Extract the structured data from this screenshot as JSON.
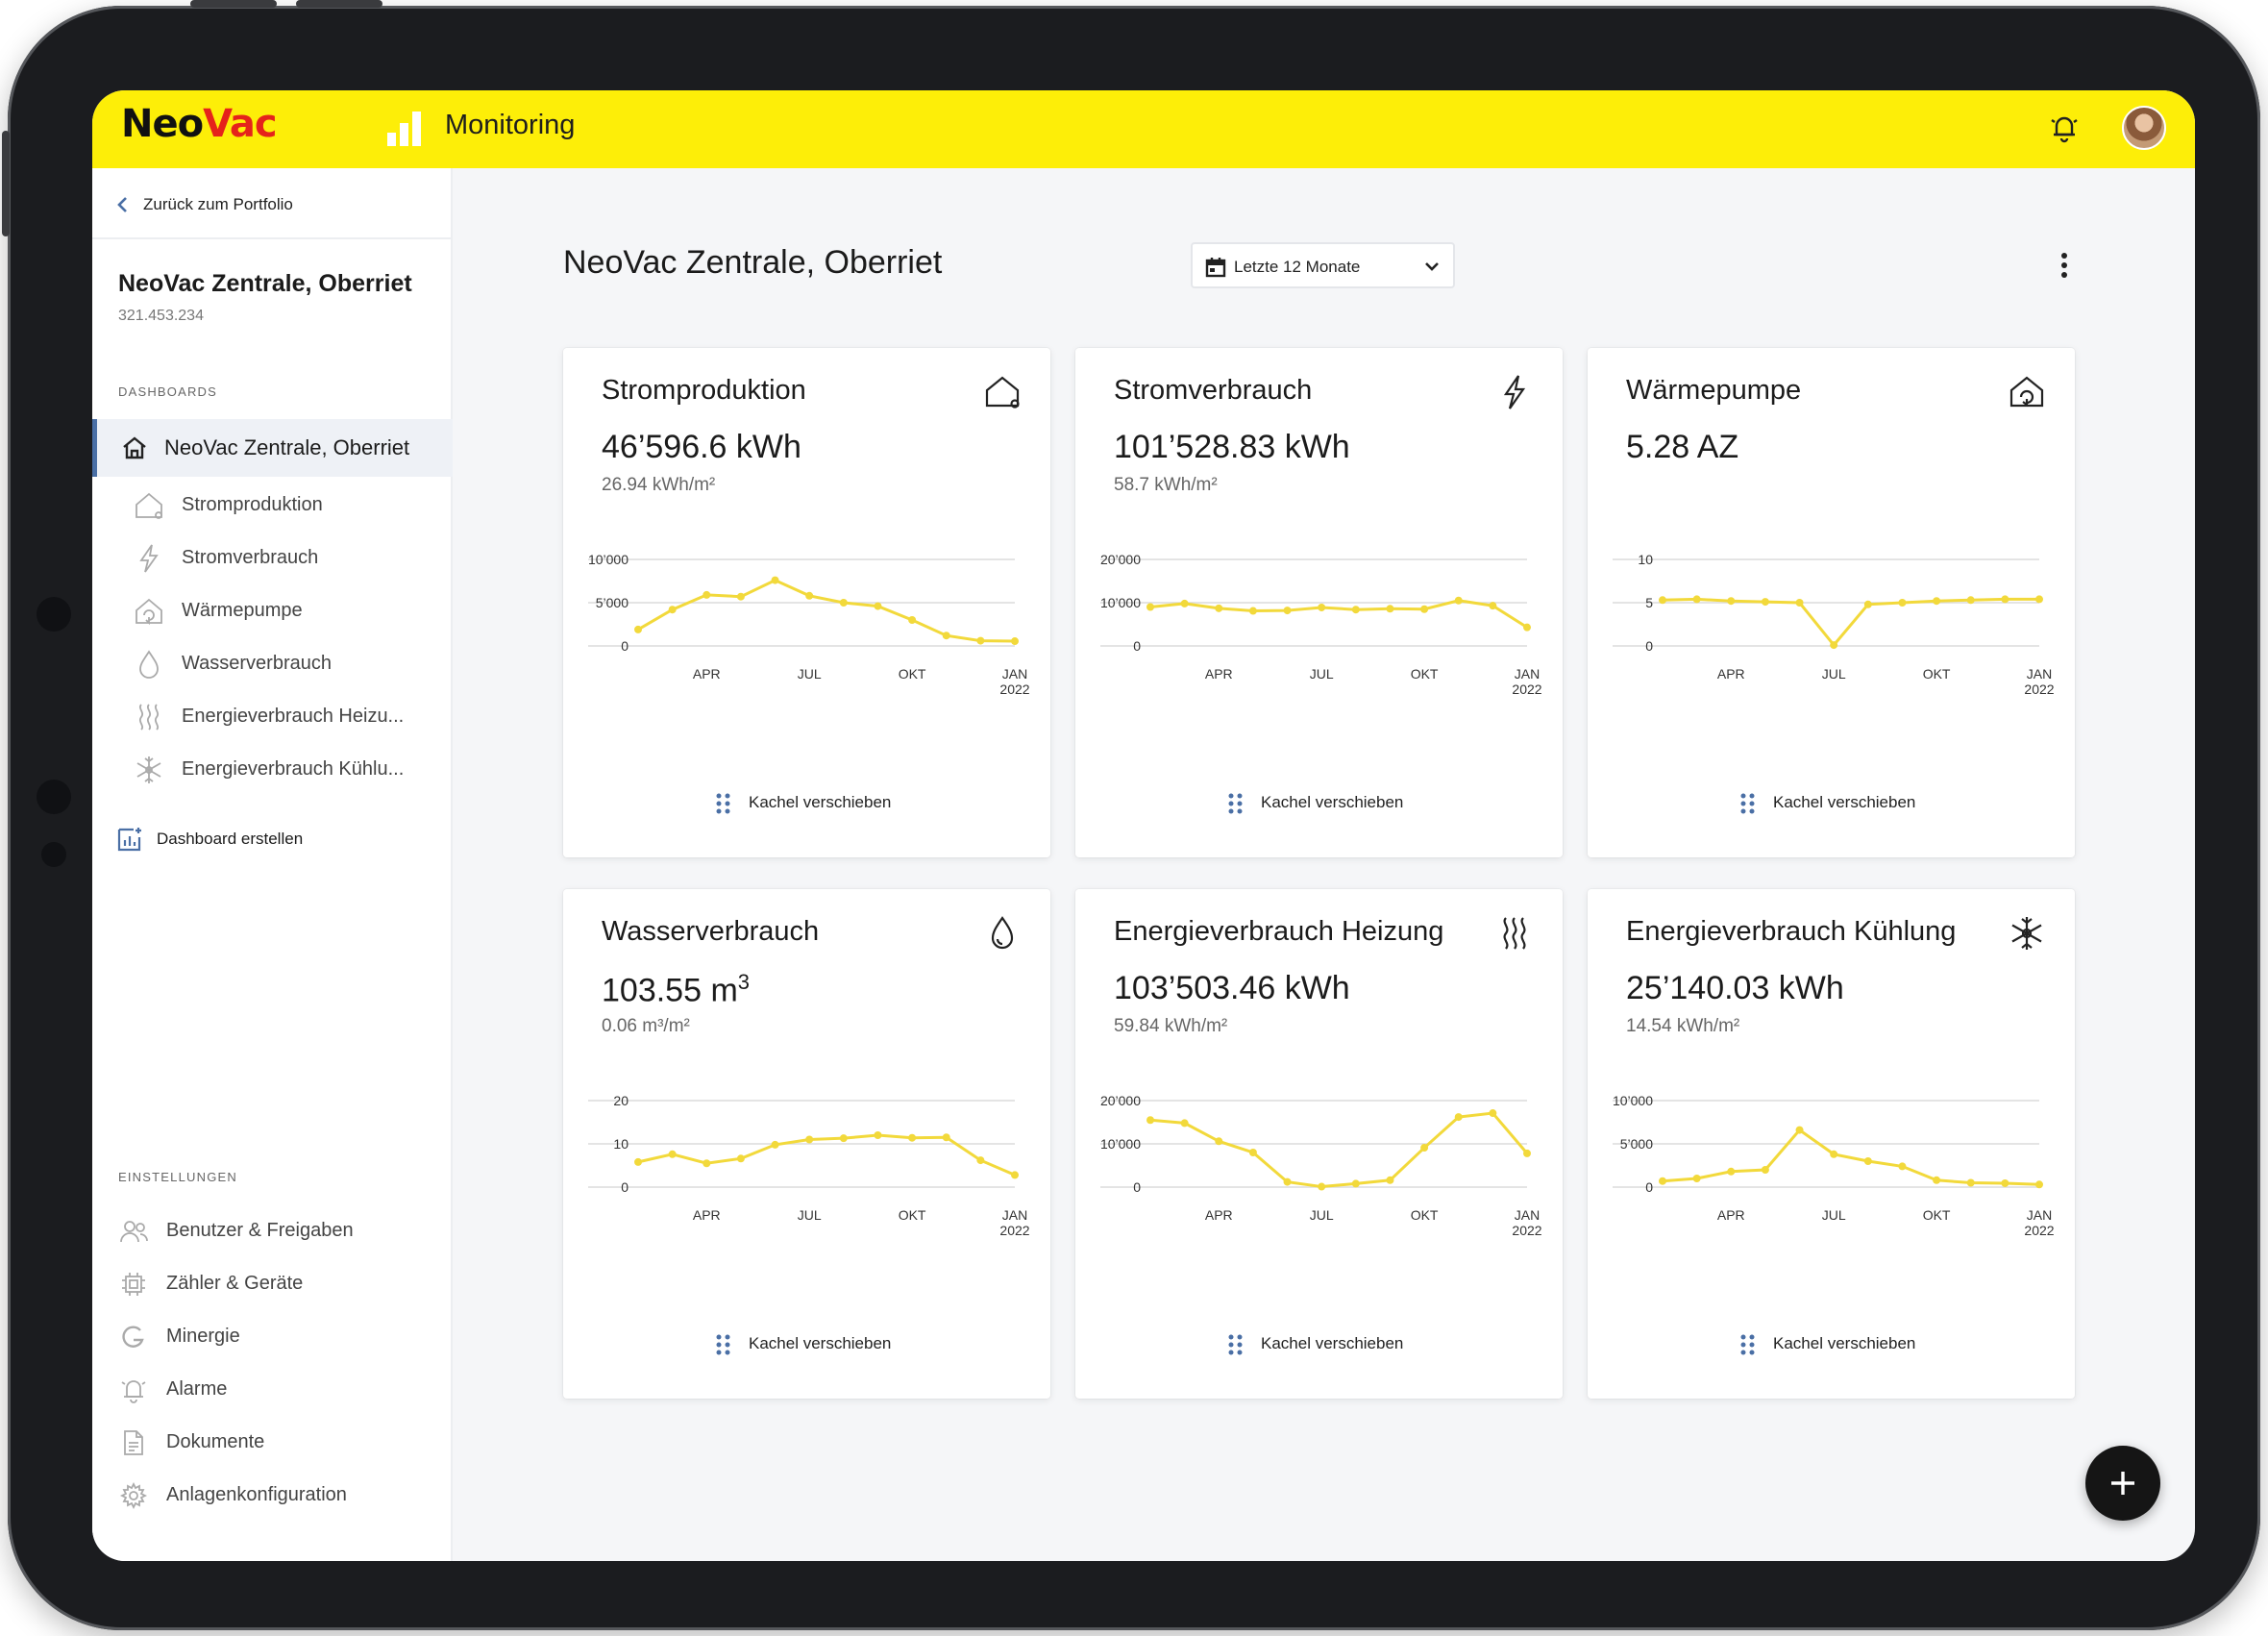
{
  "brand": {
    "logo_part1": "Neo",
    "logo_part2": "Vac",
    "app_title": "Monitoring"
  },
  "colors": {
    "accent_yellow": "#fdee08",
    "chart_line": "#f2d93b",
    "active_nav": "#4a6fa5",
    "logo_red": "#e5231b"
  },
  "sidebar": {
    "back_label": "Zurück zum Portfolio",
    "property_name": "NeoVac Zentrale, Oberriet",
    "property_id": "321.453.234",
    "dashboards_label": "DASHBOARDS",
    "active_dashboard": "NeoVac Zentrale, Oberriet",
    "sub_items": [
      {
        "label": "Stromproduktion",
        "icon": "house-roof-icon"
      },
      {
        "label": "Stromverbrauch",
        "icon": "lightning-icon"
      },
      {
        "label": "Wärmepumpe",
        "icon": "heat-pump-icon"
      },
      {
        "label": "Wasserverbrauch",
        "icon": "water-drop-icon"
      },
      {
        "label": "Energieverbrauch Heizu...",
        "icon": "heating-waves-icon"
      },
      {
        "label": "Energieverbrauch Kühlu...",
        "icon": "snowflake-icon"
      }
    ],
    "create_label": "Dashboard erstellen",
    "settings_label": "EINSTELLUNGEN",
    "settings_items": [
      {
        "label": "Benutzer & Freigaben",
        "icon": "users-icon"
      },
      {
        "label": "Zähler & Geräte",
        "icon": "meter-chip-icon"
      },
      {
        "label": "Minergie",
        "icon": "minergie-icon"
      },
      {
        "label": "Alarme",
        "icon": "alarm-bell-icon"
      },
      {
        "label": "Dokumente",
        "icon": "document-icon"
      },
      {
        "label": "Anlagenkonfiguration",
        "icon": "gear-icon"
      }
    ]
  },
  "main": {
    "title": "NeoVac Zentrale, Oberriet",
    "range_label": "Letzte 12 Monate",
    "move_label": "Kachel verschieben"
  },
  "cards": [
    {
      "title": "Stromproduktion",
      "value": "46’596.6 kWh",
      "sub": "26.94 kWh/m²",
      "icon": "house-roof-icon"
    },
    {
      "title": "Stromverbrauch",
      "value": "101’528.83 kWh",
      "sub": "58.7 kWh/m²",
      "icon": "lightning-icon"
    },
    {
      "title": "Wärmepumpe",
      "value": "5.28 AZ",
      "sub": "",
      "icon": "heat-pump-icon"
    },
    {
      "title": "Wasserverbrauch",
      "value_main": "103.55 m",
      "value_sup": "3",
      "sub": "0.06 m³/m²",
      "icon": "water-drop-icon"
    },
    {
      "title": "Energieverbrauch Heizung",
      "value": "103’503.46 kWh",
      "sub": "59.84 kWh/m²",
      "icon": "heating-waves-icon"
    },
    {
      "title": "Energieverbrauch Kühlung",
      "value": "25’140.03 kWh",
      "sub": "14.54 kWh/m²",
      "icon": "snowflake-icon"
    }
  ],
  "chart_data": [
    {
      "type": "line",
      "x_ticks": [
        "APR",
        "JUL",
        "OKT",
        "JAN\n2022"
      ],
      "y_ticks": [
        "0",
        "5’000",
        "10’000"
      ],
      "ylim": [
        0,
        10000
      ],
      "values": [
        1900,
        4200,
        5900,
        5700,
        7600,
        5800,
        5000,
        4600,
        3000,
        1200,
        600,
        550
      ]
    },
    {
      "type": "line",
      "x_ticks": [
        "APR",
        "JUL",
        "OKT",
        "JAN\n2022"
      ],
      "y_ticks": [
        "0",
        "10’000",
        "20’000"
      ],
      "ylim": [
        0,
        20000
      ],
      "values": [
        9000,
        9800,
        8700,
        8100,
        8200,
        8900,
        8400,
        8600,
        8500,
        10500,
        9300,
        4300
      ]
    },
    {
      "type": "line",
      "x_ticks": [
        "APR",
        "JUL",
        "OKT",
        "JAN\n2022"
      ],
      "y_ticks": [
        "0",
        "5",
        "10"
      ],
      "ylim": [
        0,
        10
      ],
      "values": [
        5.3,
        5.4,
        5.2,
        5.1,
        5.0,
        0.1,
        4.8,
        5.0,
        5.2,
        5.3,
        5.4,
        5.4
      ]
    },
    {
      "type": "line",
      "x_ticks": [
        "APR",
        "JUL",
        "OKT",
        "JAN\n2022"
      ],
      "y_ticks": [
        "0",
        "10",
        "20"
      ],
      "ylim": [
        0,
        20
      ],
      "values": [
        5.8,
        7.6,
        5.5,
        6.6,
        9.8,
        11.0,
        11.3,
        12.0,
        11.4,
        11.5,
        6.2,
        2.8
      ]
    },
    {
      "type": "line",
      "x_ticks": [
        "APR",
        "JUL",
        "OKT",
        "JAN\n2022"
      ],
      "y_ticks": [
        "0",
        "10’000",
        "20’000"
      ],
      "ylim": [
        0,
        20000
      ],
      "values": [
        15500,
        14800,
        10600,
        8000,
        1200,
        100,
        800,
        1600,
        9100,
        16200,
        17100,
        7800
      ]
    },
    {
      "type": "line",
      "x_ticks": [
        "APR",
        "JUL",
        "OKT",
        "JAN\n2022"
      ],
      "y_ticks": [
        "0",
        "5’000",
        "10’000"
      ],
      "ylim": [
        0,
        10000
      ],
      "values": [
        700,
        1000,
        1800,
        2000,
        6600,
        3800,
        3000,
        2400,
        800,
        500,
        450,
        300
      ]
    }
  ]
}
